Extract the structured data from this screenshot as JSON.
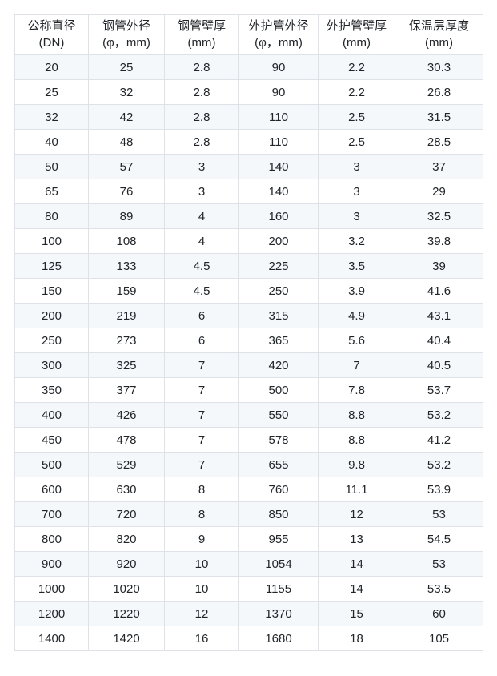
{
  "chart_data": {
    "type": "table",
    "title": "",
    "columns": [
      {
        "label": "公称直径",
        "unit": "(DN)"
      },
      {
        "label": "钢管外径",
        "unit": "(φ，mm)"
      },
      {
        "label": "钢管壁厚",
        "unit": "(mm)"
      },
      {
        "label": "外护管外径",
        "unit": "(φ，mm)"
      },
      {
        "label": "外护管壁厚",
        "unit": "(mm)"
      },
      {
        "label": "保温层厚度",
        "unit": "(mm)"
      }
    ],
    "rows": [
      [
        "20",
        "25",
        "2.8",
        "90",
        "2.2",
        "30.3"
      ],
      [
        "25",
        "32",
        "2.8",
        "90",
        "2.2",
        "26.8"
      ],
      [
        "32",
        "42",
        "2.8",
        "110",
        "2.5",
        "31.5"
      ],
      [
        "40",
        "48",
        "2.8",
        "110",
        "2.5",
        "28.5"
      ],
      [
        "50",
        "57",
        "3",
        "140",
        "3",
        "37"
      ],
      [
        "65",
        "76",
        "3",
        "140",
        "3",
        "29"
      ],
      [
        "80",
        "89",
        "4",
        "160",
        "3",
        "32.5"
      ],
      [
        "100",
        "108",
        "4",
        "200",
        "3.2",
        "39.8"
      ],
      [
        "125",
        "133",
        "4.5",
        "225",
        "3.5",
        "39"
      ],
      [
        "150",
        "159",
        "4.5",
        "250",
        "3.9",
        "41.6"
      ],
      [
        "200",
        "219",
        "6",
        "315",
        "4.9",
        "43.1"
      ],
      [
        "250",
        "273",
        "6",
        "365",
        "5.6",
        "40.4"
      ],
      [
        "300",
        "325",
        "7",
        "420",
        "7",
        "40.5"
      ],
      [
        "350",
        "377",
        "7",
        "500",
        "7.8",
        "53.7"
      ],
      [
        "400",
        "426",
        "7",
        "550",
        "8.8",
        "53.2"
      ],
      [
        "450",
        "478",
        "7",
        "578",
        "8.8",
        "41.2"
      ],
      [
        "500",
        "529",
        "7",
        "655",
        "9.8",
        "53.2"
      ],
      [
        "600",
        "630",
        "8",
        "760",
        "11.1",
        "53.9"
      ],
      [
        "700",
        "720",
        "8",
        "850",
        "12",
        "53"
      ],
      [
        "800",
        "820",
        "9",
        "955",
        "13",
        "54.5"
      ],
      [
        "900",
        "920",
        "10",
        "1054",
        "14",
        "53"
      ],
      [
        "1000",
        "1020",
        "10",
        "1155",
        "14",
        "53.5"
      ],
      [
        "1200",
        "1220",
        "12",
        "1370",
        "15",
        "60"
      ],
      [
        "1400",
        "1420",
        "16",
        "1680",
        "18",
        "105"
      ]
    ],
    "layout": {
      "grid": true,
      "striped_rows": true,
      "stripe_color": "#f4f8fb",
      "border_color": "#dee2e6",
      "text_color": "#212529"
    }
  }
}
